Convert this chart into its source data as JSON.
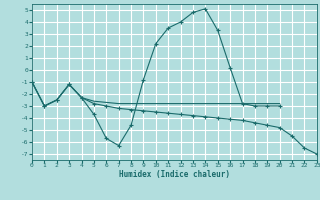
{
  "xlabel": "Humidex (Indice chaleur)",
  "background_color": "#b2dede",
  "grid_color": "#ffffff",
  "line_color": "#1a6b6b",
  "xlim": [
    0,
    23
  ],
  "ylim": [
    -7.5,
    5.5
  ],
  "xticks": [
    0,
    1,
    2,
    3,
    4,
    5,
    6,
    7,
    8,
    9,
    10,
    11,
    12,
    13,
    14,
    15,
    16,
    17,
    18,
    19,
    20,
    21,
    22,
    23
  ],
  "yticks": [
    -7,
    -6,
    -5,
    -4,
    -3,
    -2,
    -1,
    0,
    1,
    2,
    3,
    4,
    5
  ],
  "curve1_x": [
    0,
    1,
    2,
    3,
    4,
    5,
    6,
    7,
    8,
    9,
    10,
    11,
    12,
    13,
    14,
    15,
    16,
    17,
    18,
    19,
    20
  ],
  "curve1_y": [
    -1.0,
    -3.0,
    -2.5,
    -1.2,
    -2.3,
    -3.7,
    -5.7,
    -6.3,
    -4.6,
    -0.8,
    2.2,
    3.5,
    4.0,
    4.8,
    5.1,
    3.3,
    0.2,
    -2.8,
    -3.0,
    -3.0,
    -3.0
  ],
  "curve2_x": [
    0,
    1,
    2,
    3,
    4,
    5,
    6,
    7,
    8,
    9,
    10,
    11,
    12,
    13,
    14,
    15,
    16,
    17,
    18,
    19,
    20
  ],
  "curve2_y": [
    -1.0,
    -3.0,
    -2.5,
    -1.2,
    -2.3,
    -2.6,
    -2.7,
    -2.8,
    -2.8,
    -2.8,
    -2.8,
    -2.8,
    -2.8,
    -2.8,
    -2.8,
    -2.8,
    -2.8,
    -2.8,
    -2.8,
    -2.8,
    -2.8
  ],
  "curve3_x": [
    0,
    1,
    2,
    3,
    4,
    5,
    6,
    7,
    8,
    9,
    10,
    11,
    12,
    13,
    14,
    15,
    16,
    17,
    18,
    19,
    20,
    21,
    22,
    23
  ],
  "curve3_y": [
    -1.0,
    -3.0,
    -2.5,
    -1.2,
    -2.3,
    -2.8,
    -3.0,
    -3.2,
    -3.3,
    -3.4,
    -3.5,
    -3.6,
    -3.7,
    -3.8,
    -3.9,
    -4.0,
    -4.1,
    -4.2,
    -4.4,
    -4.6,
    -4.8,
    -5.5,
    -6.5,
    -7.0
  ]
}
